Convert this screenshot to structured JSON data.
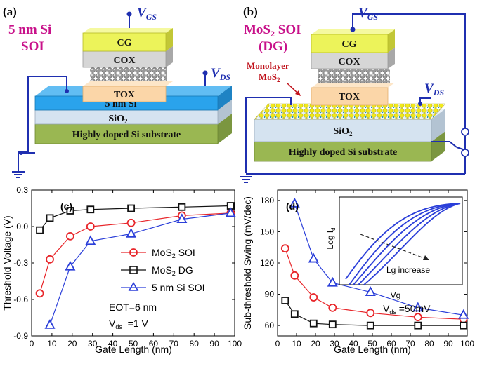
{
  "panel_a": {
    "letter": "(a)",
    "title_line1": "5 nm Si",
    "title_line2": "SOI",
    "v_gs": "GS",
    "v_ds": "DS",
    "v_symbol": "V",
    "layers": {
      "cg": "CG",
      "cox": "COX",
      "tox": "TOX",
      "channel": "5 nm Si",
      "box": "SiO",
      "box_sub": "2",
      "substrate": "Highly doped Si substrate"
    }
  },
  "panel_b": {
    "letter": "(b)",
    "title_line1_main": "MoS",
    "title_line1_sub": "2",
    "title_line1_rest": " SOI",
    "title_line2": "(DG)",
    "monolayer_line1": "Monolayer",
    "monolayer_line2": "MoS",
    "monolayer_sub": "2",
    "v_gs": "GS",
    "v_ds": "DS",
    "v_symbol": "V",
    "layers": {
      "cg": "CG",
      "cox": "COX",
      "tox": "TOX",
      "box": "SiO",
      "box_sub": "2",
      "substrate": "Highly doped Si substrate"
    }
  },
  "colors": {
    "wire": "#1f2fb0",
    "cg": "#ecf35a",
    "cox": "#d6d6d6",
    "tox": "#fbd6a8",
    "si_channel": "#2aa3ec",
    "sio2": "#d5e3f0",
    "substrate": "#9ab752",
    "title_magenta": "#c8118a",
    "red": "#e8262a",
    "black": "#111111",
    "blue": "#2b3fd9"
  },
  "chart_data": [
    {
      "type": "line",
      "panel_label": "(c)",
      "xlabel": "Gate Length (nm)",
      "ylabel": "Threshold Voltage (V)",
      "xlim": [
        0,
        100
      ],
      "ylim": [
        -0.9,
        0.3
      ],
      "xticks": [
        "0",
        "10",
        "20",
        "30",
        "40",
        "50",
        "60",
        "70",
        "80",
        "90",
        "100"
      ],
      "yticks": [
        "0.3",
        "0.0",
        "-0.3",
        "-0.6",
        "-0.9"
      ],
      "series": [
        {
          "name": "MoS",
          "name_sub": "2",
          "name_rest": " SOI",
          "marker": "circle",
          "color": "#e8262a",
          "x": [
            4,
            9,
            19,
            29,
            49,
            74,
            98
          ],
          "y": [
            -0.55,
            -0.27,
            -0.08,
            0.0,
            0.03,
            0.09,
            0.11
          ]
        },
        {
          "name": "MoS",
          "name_sub": "2",
          "name_rest": " DG",
          "marker": "square",
          "color": "#111111",
          "x": [
            4,
            9,
            19,
            29,
            49,
            74,
            98
          ],
          "y": [
            -0.03,
            0.07,
            0.13,
            0.14,
            0.15,
            0.16,
            0.17
          ]
        },
        {
          "name": "5 nm Si SOI",
          "name_sub": "",
          "name_rest": "",
          "marker": "triangle",
          "color": "#2b3fd9",
          "x": [
            9,
            19,
            29,
            49,
            74,
            98
          ],
          "y": [
            -0.81,
            -0.33,
            -0.12,
            -0.06,
            0.06,
            0.11
          ]
        }
      ],
      "annotation_line1": "EOT=6 nm",
      "annotation_line2_main": "V",
      "annotation_line2_sub": "ds",
      "annotation_line2_rest": "  =1 V"
    },
    {
      "type": "line",
      "panel_label": "(d)",
      "xlabel": "Gate Length (nm)",
      "ylabel": "Sub-threshold Swing (mV/dec)",
      "xlim": [
        0,
        100
      ],
      "ylim": [
        50,
        190
      ],
      "xticks": [
        "0",
        "10",
        "20",
        "30",
        "40",
        "50",
        "60",
        "70",
        "80",
        "90",
        "100"
      ],
      "yticks": [
        "180",
        "150",
        "120",
        "90",
        "60"
      ],
      "series": [
        {
          "name": "MoS2 SOI",
          "marker": "circle",
          "color": "#e8262a",
          "x": [
            4,
            9,
            19,
            29,
            49,
            74,
            98
          ],
          "y": [
            134,
            108,
            87,
            77,
            72,
            68,
            66
          ]
        },
        {
          "name": "MoS2 DG",
          "marker": "square",
          "color": "#111111",
          "x": [
            4,
            9,
            19,
            29,
            49,
            74,
            98
          ],
          "y": [
            84,
            71,
            62,
            61,
            60,
            60,
            60
          ]
        },
        {
          "name": "5 nm Si SOI",
          "marker": "triangle",
          "color": "#2b3fd9",
          "x": [
            9,
            19,
            29,
            49,
            74,
            98
          ],
          "y": [
            177,
            124,
            101,
            92,
            77,
            70
          ]
        }
      ],
      "annotation_main": "V",
      "annotation_sub": "ds",
      "annotation_rest": " =50mV",
      "inset": {
        "xlabel": "Vg",
        "ylabel_main": "Log I",
        "ylabel_sub": "d",
        "arrow_label": "Lg increase",
        "curve_count": 5
      }
    }
  ]
}
